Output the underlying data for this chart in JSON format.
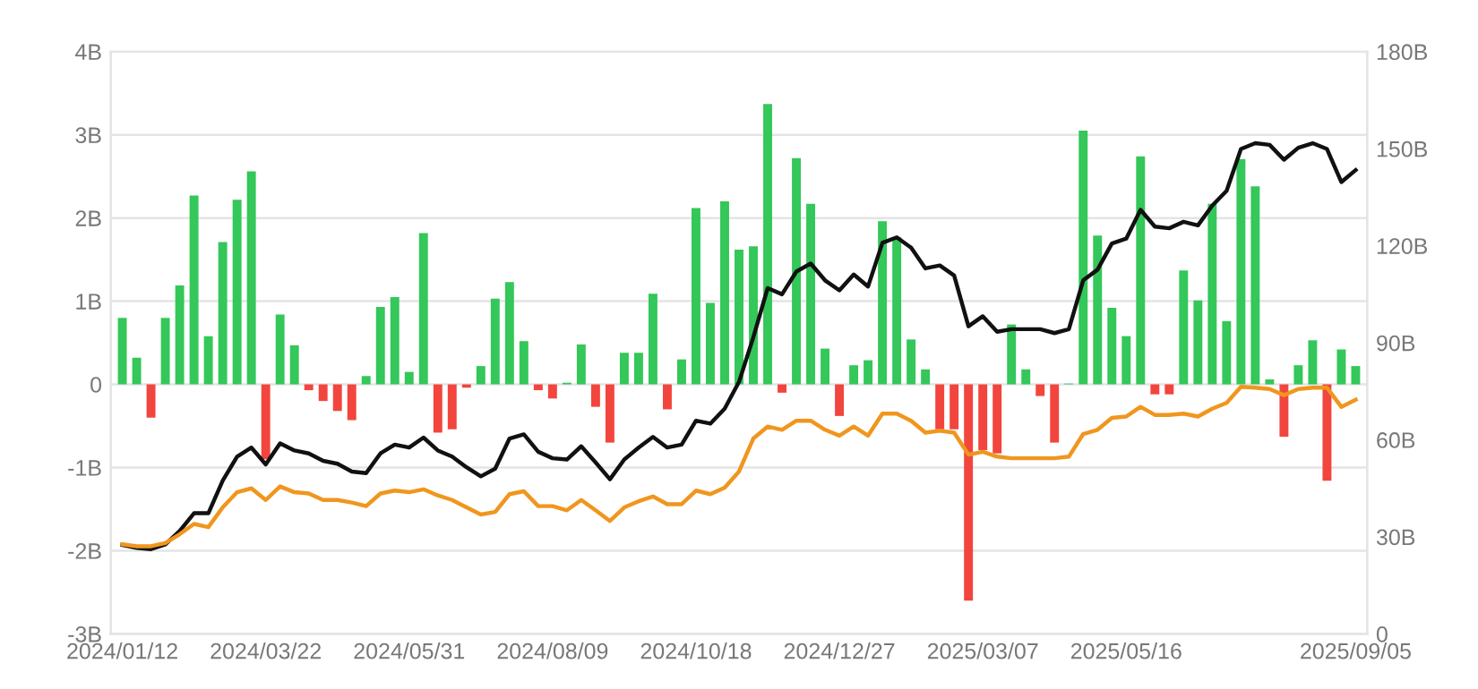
{
  "chart_data": {
    "type": "bar",
    "categories": [
      "2024/01/12",
      null,
      null,
      null,
      null,
      null,
      null,
      null,
      null,
      null,
      "2024/03/22",
      null,
      null,
      null,
      null,
      null,
      null,
      null,
      null,
      null,
      "2024/05/31",
      null,
      null,
      null,
      null,
      null,
      null,
      null,
      null,
      null,
      "2024/08/09",
      null,
      null,
      null,
      null,
      null,
      null,
      null,
      null,
      null,
      "2024/10/18",
      null,
      null,
      null,
      null,
      null,
      null,
      null,
      null,
      null,
      "2024/12/27",
      null,
      null,
      null,
      null,
      null,
      null,
      null,
      null,
      null,
      "2025/03/07",
      null,
      null,
      null,
      null,
      null,
      null,
      null,
      null,
      null,
      "2025/05/16",
      null,
      null,
      null,
      null,
      null,
      null,
      null,
      null,
      null,
      null,
      null,
      null,
      null,
      null,
      null,
      "2025/09/05"
    ],
    "series": [
      {
        "values": [
          0.8,
          0.32,
          -0.4,
          0.8,
          1.19,
          2.27,
          0.58,
          1.71,
          2.22,
          2.56,
          -0.9,
          0.84,
          0.47,
          -0.07,
          -0.2,
          -0.32,
          -0.43,
          0.1,
          0.93,
          1.05,
          0.15,
          1.82,
          -0.58,
          -0.54,
          -0.04,
          0.22,
          1.03,
          1.23,
          0.52,
          -0.07,
          -0.17,
          0.02,
          0.48,
          -0.27,
          -0.7,
          0.38,
          0.38,
          1.09,
          -0.3,
          0.3,
          2.12,
          0.98,
          2.2,
          1.62,
          1.66,
          3.37,
          -0.1,
          2.72,
          2.17,
          0.43,
          -0.38,
          0.23,
          0.29,
          1.96,
          1.77,
          0.54,
          0.18,
          -0.54,
          -0.54,
          -2.6,
          -0.79,
          -0.83,
          0.72,
          0.18,
          -0.14,
          -0.7,
          0.01,
          3.05,
          1.79,
          0.92,
          0.58,
          2.74,
          -0.12,
          -0.12,
          1.37,
          1.01,
          2.17,
          0.76,
          2.71,
          2.38,
          0.06,
          -0.63,
          0.23,
          0.53,
          -1.16,
          0.42,
          0.22
        ],
        "colors": [
          "#34c759",
          "#34c759",
          "#f2453d",
          "#34c759",
          "#34c759",
          "#34c759",
          "#34c759",
          "#34c759",
          "#34c759",
          "#34c759",
          "#f2453d",
          "#34c759",
          "#34c759",
          "#f2453d",
          "#f2453d",
          "#f2453d",
          "#f2453d",
          "#34c759",
          "#34c759",
          "#34c759",
          "#34c759",
          "#34c759",
          "#f2453d",
          "#f2453d",
          "#f2453d",
          "#34c759",
          "#34c759",
          "#34c759",
          "#34c759",
          "#f2453d",
          "#f2453d",
          "#34c759",
          "#34c759",
          "#f2453d",
          "#f2453d",
          "#34c759",
          "#34c759",
          "#34c759",
          "#f2453d",
          "#34c759",
          "#34c759",
          "#34c759",
          "#34c759",
          "#34c759",
          "#34c759",
          "#34c759",
          "#f2453d",
          "#34c759",
          "#34c759",
          "#34c759",
          "#f2453d",
          "#34c759",
          "#34c759",
          "#34c759",
          "#34c759",
          "#34c759",
          "#34c759",
          "#f2453d",
          "#f2453d",
          "#f2453d",
          "#f2453d",
          "#f2453d",
          "#34c759",
          "#34c759",
          "#f2453d",
          "#f2453d",
          "#34c759",
          "#34c759",
          "#34c759",
          "#34c759",
          "#34c759",
          "#34c759",
          "#f2453d",
          "#f2453d",
          "#34c759",
          "#34c759",
          "#34c759",
          "#34c759",
          "#34c759",
          "#34c759",
          "#34c759",
          "#f2453d",
          "#34c759",
          "#34c759",
          "#f2453d",
          "#34c759",
          "#34c759"
        ]
      },
      {
        "type": "line",
        "axis": "y2",
        "color": "#111111",
        "values": [
          27.5,
          26.6,
          26.2,
          27.7,
          31.8,
          37.3,
          37.3,
          47.4,
          54.8,
          57.6,
          52.4,
          58.9,
          56.7,
          55.8,
          53.5,
          52.6,
          50.2,
          49.7,
          55.8,
          58.5,
          57.6,
          60.7,
          56.7,
          54.8,
          51.5,
          48.7,
          51.1,
          60.4,
          61.7,
          56.3,
          54.3,
          53.9,
          58.0,
          53.0,
          47.8,
          53.9,
          57.6,
          60.9,
          57.6,
          58.5,
          65.9,
          65.0,
          69.6,
          77.9,
          91.7,
          106.9,
          105.0,
          112.0,
          114.5,
          109.3,
          106.2,
          111.1,
          107.4,
          120.9,
          122.6,
          119.4,
          113.0,
          113.9,
          110.8,
          95.1,
          98.2,
          93.4,
          94.2,
          94.2,
          94.2,
          93.0,
          94.2,
          109.3,
          112.6,
          120.7,
          122.2,
          131.1,
          125.9,
          125.4,
          127.4,
          126.3,
          132.4,
          137.0,
          149.9,
          151.7,
          151.2,
          146.6,
          150.3,
          151.7,
          149.9,
          139.7,
          143.4
        ]
      },
      {
        "type": "line",
        "axis": "y2",
        "color": "#f0961e",
        "values": [
          27.7,
          27.1,
          27.1,
          28.1,
          30.8,
          34.0,
          33.0,
          39.1,
          43.8,
          45.0,
          41.4,
          45.6,
          43.8,
          43.4,
          41.4,
          41.4,
          40.6,
          39.5,
          43.4,
          44.3,
          43.8,
          44.7,
          42.8,
          41.4,
          39.1,
          36.9,
          37.7,
          43.2,
          44.1,
          39.5,
          39.5,
          38.2,
          41.4,
          38.2,
          34.9,
          39.1,
          41.0,
          42.5,
          40.1,
          40.1,
          44.3,
          43.2,
          45.2,
          50.2,
          60.4,
          64.1,
          63.1,
          65.9,
          65.9,
          63.1,
          61.3,
          64.1,
          61.3,
          68.1,
          68.1,
          65.9,
          62.2,
          62.8,
          62.2,
          55.4,
          56.3,
          54.8,
          54.3,
          54.3,
          54.3,
          54.3,
          54.8,
          61.8,
          63.1,
          66.8,
          67.2,
          70.2,
          67.7,
          67.7,
          68.1,
          67.2,
          69.6,
          71.4,
          76.4,
          76.1,
          75.7,
          73.8,
          75.7,
          76.1,
          76.1,
          70.2,
          72.4
        ]
      }
    ],
    "ylim": [
      -3,
      4
    ],
    "yticks": [
      {
        "value": -3,
        "label": "-3B"
      },
      {
        "value": -2,
        "label": "-2B"
      },
      {
        "value": -1,
        "label": "-1B"
      },
      0,
      {
        "value": 1,
        "label": "1B"
      },
      {
        "value": 2,
        "label": "2B"
      },
      {
        "value": 3,
        "label": "3B"
      },
      {
        "value": 4,
        "label": "4B"
      }
    ],
    "y2lim": [
      0,
      180
    ],
    "y2ticks": [
      0,
      {
        "value": 30,
        "label": "30B"
      },
      {
        "value": 60,
        "label": "60B"
      },
      {
        "value": 90,
        "label": "90B"
      },
      {
        "value": 120,
        "label": "120B"
      },
      {
        "value": 150,
        "label": "150B"
      },
      {
        "value": 180,
        "label": "180B"
      }
    ],
    "grid": "y"
  }
}
